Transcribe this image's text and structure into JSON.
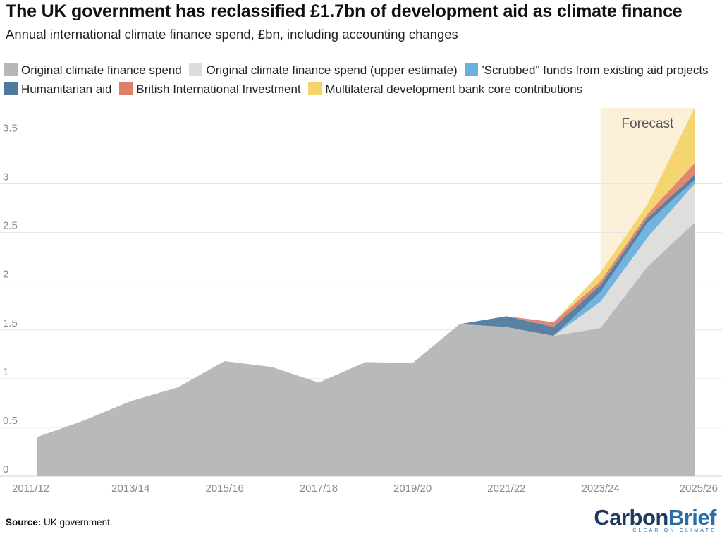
{
  "title": "The UK government has reclassified £1.7bn of development aid as climate finance",
  "subtitle": "Annual international climate finance spend, £bn, including accounting changes",
  "source_label": "Source:",
  "source_text": "UK government.",
  "brand": {
    "part1": "Carbon",
    "part2": "Brief",
    "tagline": "CLEAR ON CLIMATE"
  },
  "chart_data": {
    "type": "area",
    "stacked": true,
    "title": "The UK government has reclassified £1.7bn of development aid as climate finance",
    "ylabel": "£bn",
    "ylim": [
      0,
      3.8
    ],
    "yticks": [
      0,
      0.5,
      1,
      1.5,
      2,
      2.5,
      3,
      3.5
    ],
    "ytick_labels": [
      "0",
      "0.5",
      "1",
      "1.5",
      "2",
      "2.5",
      "3",
      "3.5"
    ],
    "x": [
      "2011/12",
      "2012/13",
      "2013/14",
      "2014/15",
      "2015/16",
      "2016/17",
      "2017/18",
      "2018/19",
      "2019/20",
      "2020/21",
      "2021/22",
      "2022/23",
      "2023/24",
      "2024/25",
      "2025/26"
    ],
    "xtick_labels": [
      "2011/12",
      "2013/14",
      "2015/16",
      "2017/18",
      "2019/20",
      "2021/22",
      "2023/24",
      "2025/26"
    ],
    "forecast": {
      "label": "Forecast",
      "start": "2023/24",
      "end": "2025/26"
    },
    "series": [
      {
        "name": "Original climate finance spend",
        "color": "#b7b7b7",
        "values": [
          0.4,
          0.57,
          0.77,
          0.91,
          1.18,
          1.12,
          0.96,
          1.17,
          1.16,
          1.56,
          1.53,
          1.44,
          1.52,
          2.15,
          2.6
        ]
      },
      {
        "name": "Original climate finance spend (upper estimate)",
        "color": "#dcdcdc",
        "values": [
          0,
          0,
          0,
          0,
          0,
          0,
          0,
          0,
          0,
          0,
          0,
          0,
          0.27,
          0.3,
          0.4
        ]
      },
      {
        "name": "'Scrubbed\" funds from existing aid projects",
        "color": "#6ab0de",
        "values": [
          0,
          0,
          0,
          0,
          0,
          0,
          0,
          0,
          0,
          0,
          0,
          0,
          0.1,
          0.15,
          0.04
        ]
      },
      {
        "name": "Humanitarian aid",
        "color": "#4f7a9e",
        "values": [
          0,
          0,
          0,
          0,
          0,
          0,
          0,
          0,
          0,
          0,
          0.11,
          0.09,
          0.07,
          0.05,
          0.05
        ]
      },
      {
        "name": "British International Investment",
        "color": "#df7f6a",
        "values": [
          0,
          0,
          0,
          0,
          0,
          0,
          0,
          0,
          0,
          0,
          0,
          0.05,
          0.04,
          0.04,
          0.12
        ]
      },
      {
        "name": "Multilateral development bank core contributions",
        "color": "#f3d36a",
        "values": [
          0,
          0,
          0,
          0,
          0,
          0,
          0,
          0,
          0,
          0,
          0,
          0,
          0.09,
          0.1,
          0.57
        ]
      }
    ]
  }
}
